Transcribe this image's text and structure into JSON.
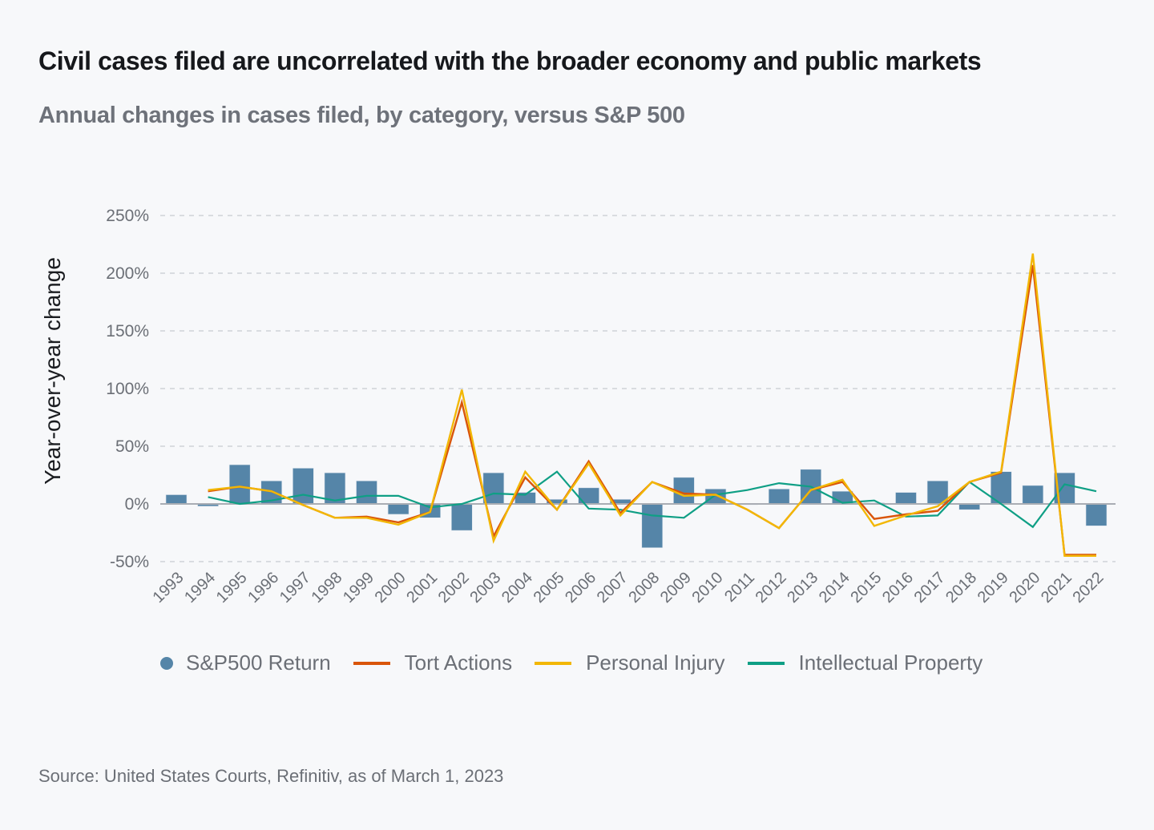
{
  "header": {
    "title": "Civil cases filed are uncorrelated with the broader economy and public markets",
    "subtitle": "Annual changes in cases filed, by category, versus S&P 500"
  },
  "footer": {
    "source": "Source: United States Courts, Refinitiv, as of March 1, 2023"
  },
  "colors": {
    "sp500": "#5585a8",
    "tort": "#d9550a",
    "personal_injury": "#f2b705",
    "intellectual_property": "#0f9f85",
    "grid": "#cfd2d7",
    "zero_line": "#a9adb4"
  },
  "chart_data": {
    "type": "bar+line",
    "title": "Civil cases filed are uncorrelated with the broader economy and public markets",
    "subtitle": "Annual changes in cases filed, by category, versus S&P 500",
    "xlabel": "",
    "ylabel": "Year-over-year change",
    "ylim": [
      -50,
      250
    ],
    "yticks": [
      -50,
      0,
      50,
      100,
      150,
      200,
      250
    ],
    "ytick_labels": [
      "-50%",
      "0%",
      "50%",
      "100%",
      "150%",
      "200%",
      "250%"
    ],
    "grid": true,
    "legend_position": "bottom",
    "categories": [
      "1993",
      "1994",
      "1995",
      "1996",
      "1997",
      "1998",
      "1999",
      "2000",
      "2001",
      "2002",
      "2003",
      "2004",
      "2005",
      "2006",
      "2007",
      "2008",
      "2009",
      "2010",
      "2011",
      "2012",
      "2013",
      "2014",
      "2015",
      "2016",
      "2017",
      "2018",
      "2019",
      "2020",
      "2021",
      "2022"
    ],
    "series": [
      {
        "name": "S&P500 Return",
        "type": "bar",
        "values": [
          8,
          -2,
          34,
          20,
          31,
          27,
          20,
          -9,
          -12,
          -23,
          27,
          10,
          4,
          14,
          4,
          -38,
          23,
          13,
          0,
          13,
          30,
          11,
          1,
          10,
          20,
          -5,
          28,
          16,
          27,
          -19
        ]
      },
      {
        "name": "Tort Actions",
        "type": "line",
        "values": [
          null,
          11,
          15,
          11,
          -1,
          -12,
          -11,
          -16,
          -7,
          88,
          -28,
          23,
          -5,
          37,
          -8,
          19,
          9,
          8,
          -5,
          -21,
          12,
          19,
          -13,
          -9,
          -6,
          19,
          27,
          207,
          -44,
          -44
        ]
      },
      {
        "name": "Personal Injury",
        "type": "line",
        "values": [
          null,
          12,
          15,
          11,
          -1,
          -12,
          -12,
          -18,
          -7,
          99,
          -32,
          28,
          -5,
          35,
          -10,
          19,
          7,
          8,
          -5,
          -21,
          12,
          21,
          -19,
          -10,
          -2,
          19,
          28,
          217,
          -45,
          -45
        ]
      },
      {
        "name": "Intellectual Property",
        "type": "line",
        "values": [
          null,
          6,
          0,
          3,
          8,
          3,
          7,
          7,
          -3,
          0,
          9,
          8,
          28,
          -4,
          -5,
          -10,
          -12,
          8,
          12,
          18,
          15,
          1,
          3,
          -11,
          -10,
          19,
          0,
          -20,
          17,
          11
        ]
      }
    ]
  }
}
